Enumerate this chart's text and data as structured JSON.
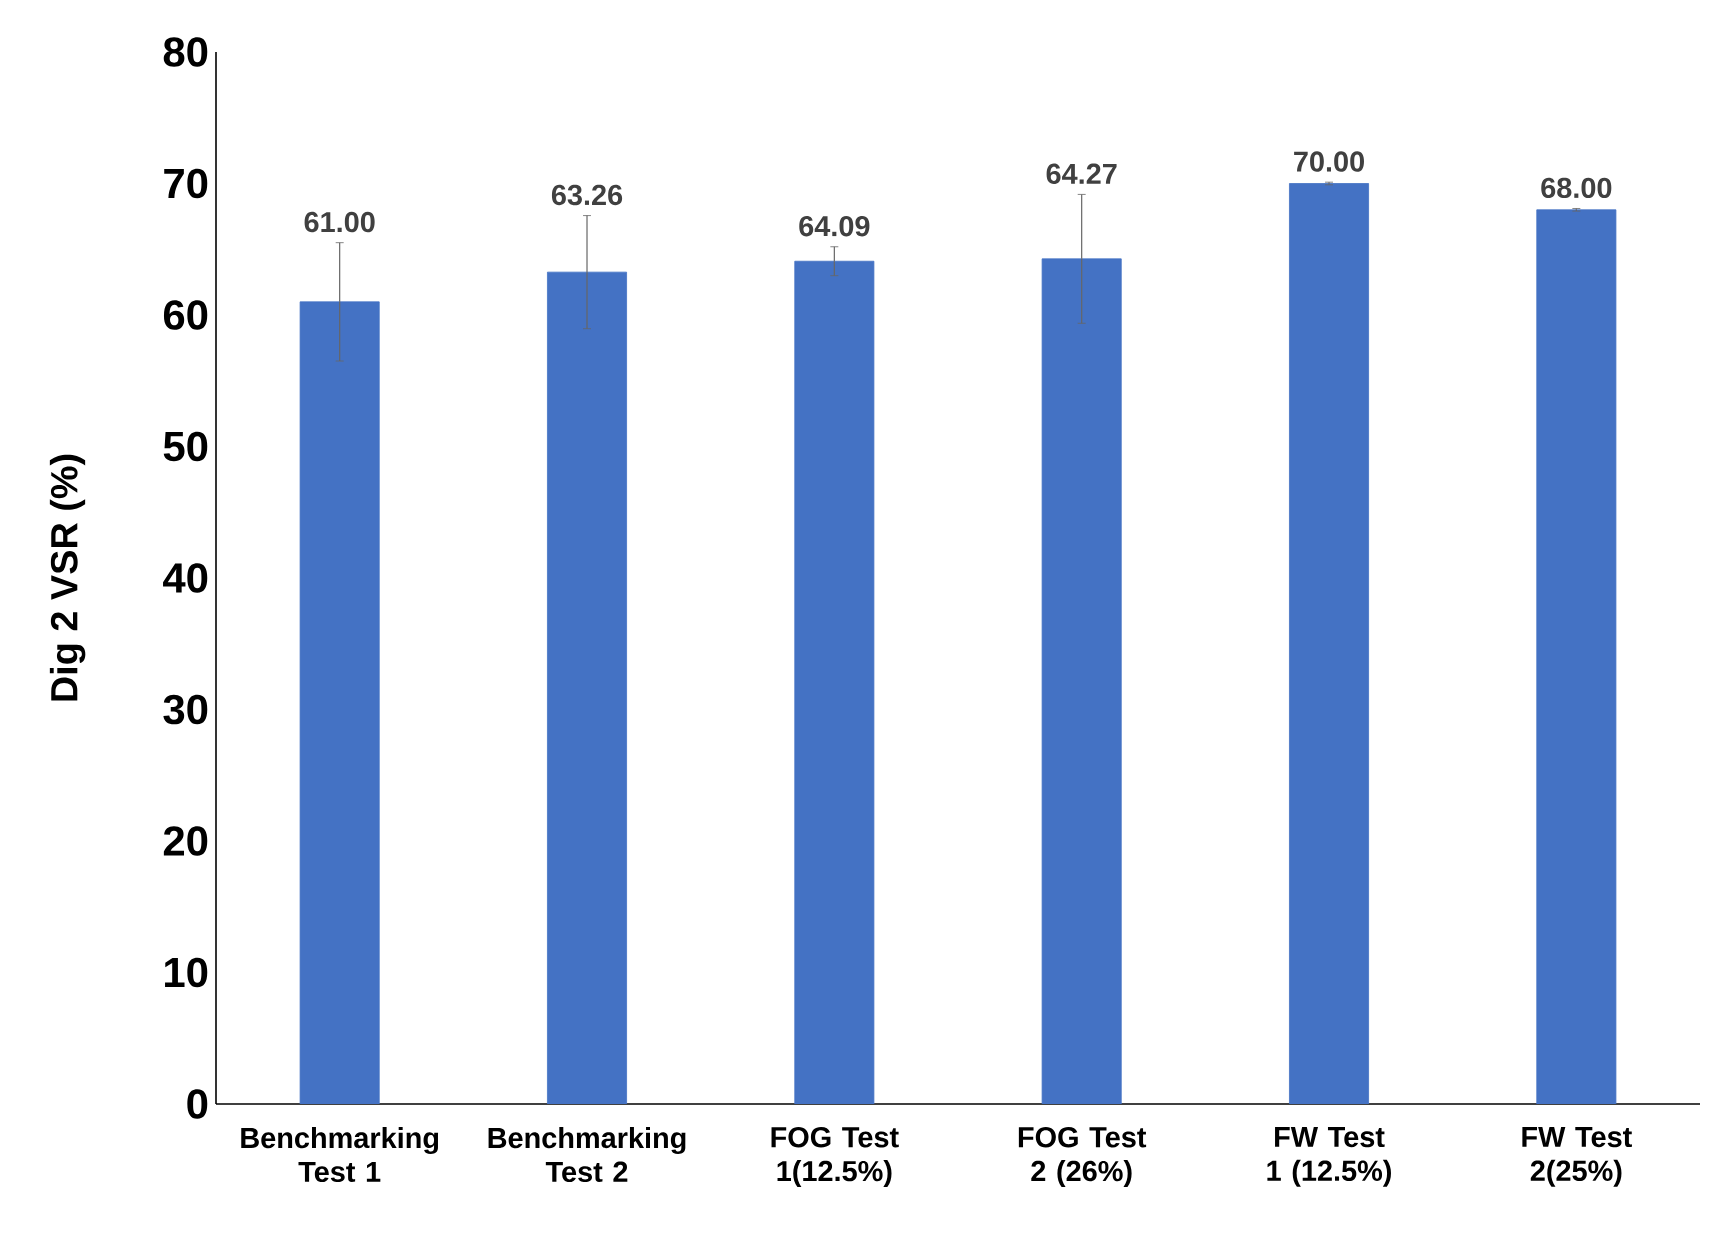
{
  "chart_data": {
    "type": "bar",
    "ylabel": "Dig 2 VSR (%)",
    "categories": [
      "Benchmarking Test 1",
      "Benchmarking Test 2",
      "FOG Test 1(12.5%)",
      "FOG Test 2 (26%)",
      "FW Test 1 (12.5%)",
      "FW Test 2(25%)"
    ],
    "values": [
      61.0,
      63.26,
      64.09,
      64.27,
      70.0,
      68.0
    ],
    "value_labels": [
      "61.00",
      "63.26",
      "64.09",
      "64.27",
      "70.00",
      "68.00"
    ],
    "errors": [
      4.5,
      4.3,
      1.1,
      4.9,
      0.1,
      0.1
    ],
    "color": "#4472c4",
    "ylim": [
      0,
      80
    ],
    "yticks": [
      0,
      10,
      20,
      30,
      40,
      50,
      60,
      70,
      80
    ],
    "grid": false
  }
}
